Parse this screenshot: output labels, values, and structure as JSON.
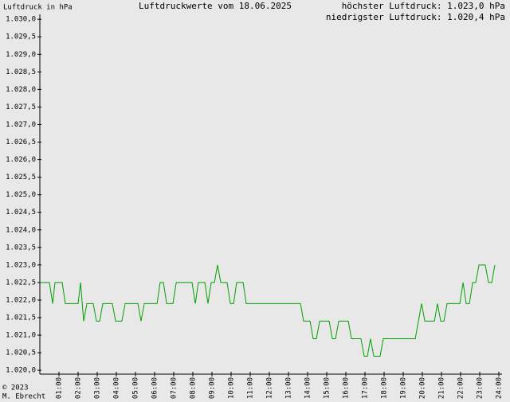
{
  "chart_data": {
    "type": "line",
    "title": "Luftdruckwerte vom 18.06.2025",
    "y_label": "Luftdruck in hPa",
    "annotations": [
      "höchster Luftdruck: 1.023,0 hPa",
      "niedrigster Luftdruck: 1.020,4 hPa",
      "© 2023",
      "M. Ebrecht"
    ],
    "xlim": [
      0,
      24
    ],
    "ylim": [
      1019.89,
      1030.14
    ],
    "xticks": [
      {
        "value": 1,
        "label": "01:00"
      },
      {
        "value": 2,
        "label": "02:00"
      },
      {
        "value": 3,
        "label": "03:00"
      },
      {
        "value": 4,
        "label": "04:00"
      },
      {
        "value": 5,
        "label": "05:00"
      },
      {
        "value": 6,
        "label": "06:00"
      },
      {
        "value": 7,
        "label": "07:00"
      },
      {
        "value": 8,
        "label": "08:00"
      },
      {
        "value": 9,
        "label": "09:00"
      },
      {
        "value": 10,
        "label": "10:00"
      },
      {
        "value": 11,
        "label": "11:00"
      },
      {
        "value": 12,
        "label": "12:00"
      },
      {
        "value": 13,
        "label": "13:00"
      },
      {
        "value": 14,
        "label": "14:00"
      },
      {
        "value": 15,
        "label": "15:00"
      },
      {
        "value": 16,
        "label": "16:00"
      },
      {
        "value": 17,
        "label": "17:00"
      },
      {
        "value": 18,
        "label": "18:00"
      },
      {
        "value": 19,
        "label": "19:00"
      },
      {
        "value": 20,
        "label": "20:00"
      },
      {
        "value": 21,
        "label": "21:00"
      },
      {
        "value": 22,
        "label": "22:00"
      },
      {
        "value": 23,
        "label": "23:00"
      },
      {
        "value": 24,
        "label": "24:00"
      }
    ],
    "yticks": [
      {
        "value": 1020,
        "label": "1.020,0"
      },
      {
        "value": 1020.5,
        "label": "1.020,5"
      },
      {
        "value": 1021,
        "label": "1.021,0"
      },
      {
        "value": 1021.5,
        "label": "1.021,5"
      },
      {
        "value": 1022,
        "label": "1.022,0"
      },
      {
        "value": 1022.5,
        "label": "1.022,5"
      },
      {
        "value": 1023,
        "label": "1.023,0"
      },
      {
        "value": 1023.5,
        "label": "1.023,5"
      },
      {
        "value": 1024,
        "label": "1.024,0"
      },
      {
        "value": 1024.5,
        "label": "1.024,5"
      },
      {
        "value": 1025,
        "label": "1.025,0"
      },
      {
        "value": 1025.5,
        "label": "1.025,5"
      },
      {
        "value": 1026,
        "label": "1.026,0"
      },
      {
        "value": 1026.5,
        "label": "1.026,5"
      },
      {
        "value": 1027,
        "label": "1.027,0"
      },
      {
        "value": 1027.5,
        "label": "1.027,5"
      },
      {
        "value": 1028,
        "label": "1.028,0"
      },
      {
        "value": 1028.5,
        "label": "1.028,5"
      },
      {
        "value": 1029,
        "label": "1.029,0"
      },
      {
        "value": 1029.5,
        "label": "1.029,5"
      },
      {
        "value": 1030,
        "label": "1.030,0"
      }
    ],
    "color": "#00a000",
    "x": [
      0,
      0.5,
      0.67,
      0.79,
      1.17,
      1.33,
      2,
      2.13,
      2.29,
      2.46,
      2.79,
      2.96,
      3.13,
      3.29,
      3.79,
      3.96,
      4.29,
      4.46,
      5.13,
      5.29,
      5.46,
      6.13,
      6.29,
      6.46,
      6.63,
      6.96,
      7.13,
      7.96,
      8.13,
      8.29,
      8.63,
      8.79,
      8.96,
      9.13,
      9.29,
      9.46,
      9.79,
      9.96,
      10.13,
      10.29,
      10.63,
      10.79,
      13.63,
      13.79,
      14.13,
      14.29,
      14.46,
      14.63,
      15.13,
      15.29,
      15.46,
      15.63,
      16.13,
      16.29,
      16.79,
      16.96,
      17.13,
      17.29,
      17.46,
      17.79,
      17.96,
      19.63,
      19.96,
      20.13,
      20.63,
      20.79,
      20.96,
      21.13,
      21.29,
      21.96,
      22.13,
      22.29,
      22.46,
      22.63,
      22.79,
      22.96,
      23.29,
      23.46,
      23.63,
      23.79
    ],
    "values": [
      1022.5,
      1022.5,
      1021.9,
      1022.5,
      1022.5,
      1021.9,
      1021.9,
      1022.5,
      1021.4,
      1021.9,
      1021.9,
      1021.4,
      1021.4,
      1021.9,
      1021.9,
      1021.4,
      1021.4,
      1021.9,
      1021.9,
      1021.4,
      1021.9,
      1021.9,
      1022.5,
      1022.5,
      1021.9,
      1021.9,
      1022.5,
      1022.5,
      1021.9,
      1022.5,
      1022.5,
      1021.9,
      1022.5,
      1022.5,
      1023.0,
      1022.5,
      1022.5,
      1021.9,
      1021.9,
      1022.5,
      1022.5,
      1021.9,
      1021.9,
      1021.4,
      1021.4,
      1020.9,
      1020.9,
      1021.4,
      1021.4,
      1020.9,
      1020.9,
      1021.4,
      1021.4,
      1020.9,
      1020.9,
      1020.4,
      1020.4,
      1020.9,
      1020.4,
      1020.4,
      1020.9,
      1020.9,
      1021.9,
      1021.4,
      1021.4,
      1021.9,
      1021.4,
      1021.4,
      1021.9,
      1021.9,
      1022.5,
      1021.9,
      1021.9,
      1022.5,
      1022.5,
      1023.0,
      1023.0,
      1022.5,
      1022.5,
      1023.0
    ]
  }
}
